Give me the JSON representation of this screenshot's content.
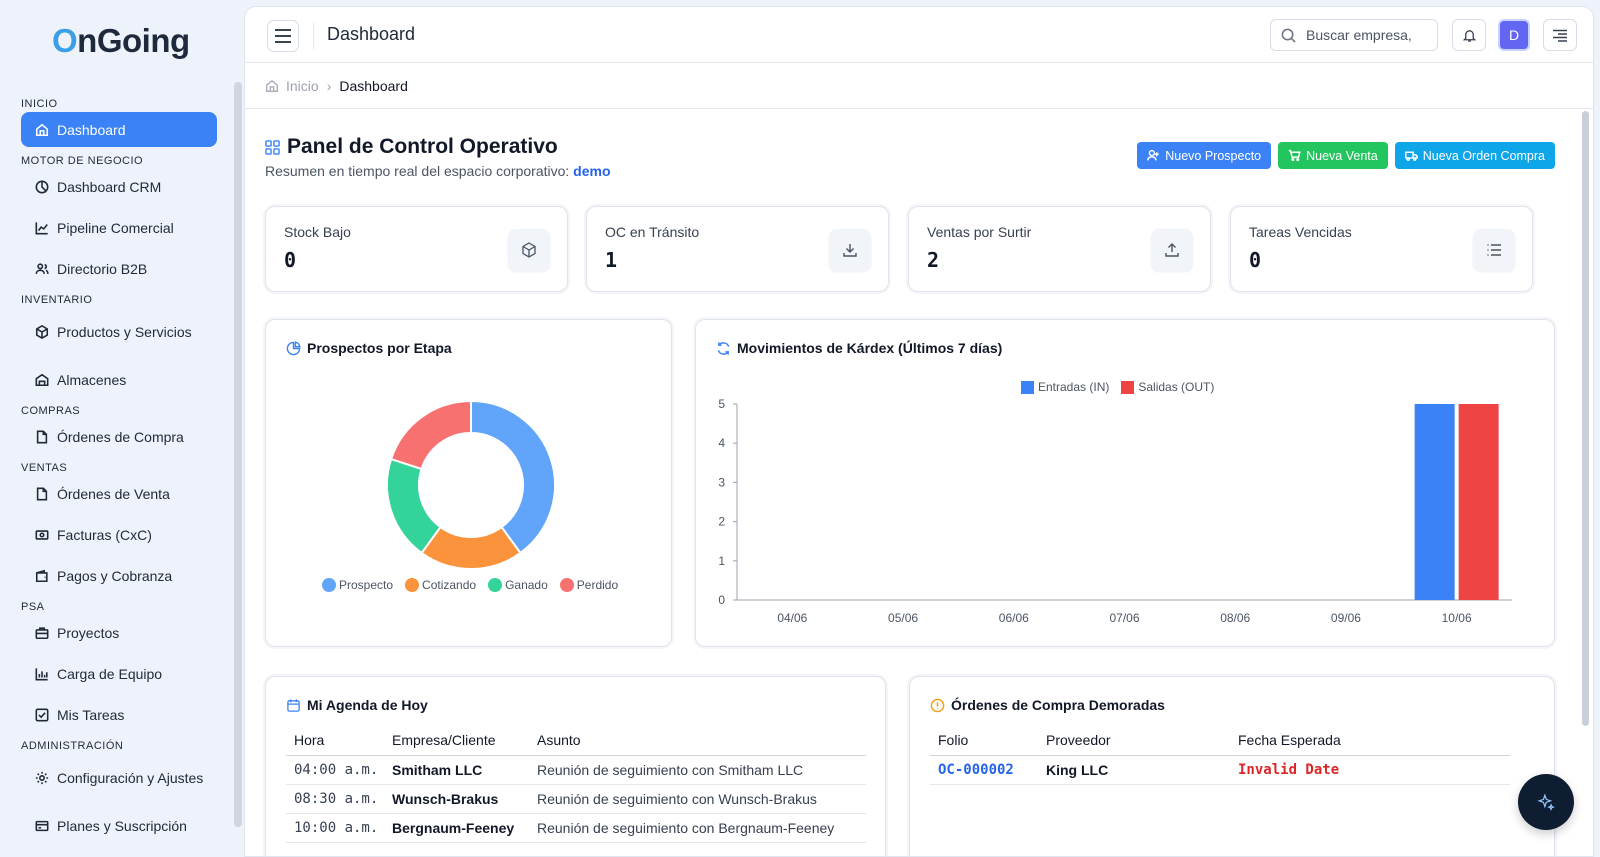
{
  "brand": {
    "logo_first": "O",
    "logo_rest": "nGoing"
  },
  "sidebar": {
    "sections": [
      {
        "title": "INICIO",
        "items": [
          {
            "label": "Dashboard",
            "icon": "home-icon",
            "active": true
          }
        ]
      },
      {
        "title": "MOTOR DE NEGOCIO",
        "items": [
          {
            "label": "Dashboard CRM",
            "icon": "pie-icon"
          },
          {
            "label": "Pipeline Comercial",
            "icon": "trend-icon"
          },
          {
            "label": "Directorio B2B",
            "icon": "users-icon"
          }
        ]
      },
      {
        "title": "INVENTARIO",
        "items": [
          {
            "label": "Productos y Servicios",
            "icon": "box-icon"
          },
          {
            "label": "Almacenes",
            "icon": "warehouse-icon"
          }
        ]
      },
      {
        "title": "COMPRAS",
        "items": [
          {
            "label": "Órdenes de Compra",
            "icon": "file-icon"
          }
        ]
      },
      {
        "title": "VENTAS",
        "items": [
          {
            "label": "Órdenes de Venta",
            "icon": "file-icon"
          },
          {
            "label": "Facturas (CxC)",
            "icon": "money-icon"
          },
          {
            "label": "Pagos y Cobranza",
            "icon": "wallet-icon"
          }
        ]
      },
      {
        "title": "PSA",
        "items": [
          {
            "label": "Proyectos",
            "icon": "briefcase-icon"
          },
          {
            "label": "Carga de Equipo",
            "icon": "bars-icon"
          },
          {
            "label": "Mis Tareas",
            "icon": "check-icon"
          }
        ]
      },
      {
        "title": "ADMINISTRACIÓN",
        "items": [
          {
            "label": "Configuración y Ajustes",
            "icon": "gear-icon"
          },
          {
            "label": "Planes y Suscripción",
            "icon": "card-icon"
          }
        ]
      }
    ]
  },
  "topbar": {
    "title": "Dashboard",
    "search_placeholder": "Buscar empresa,",
    "avatar_letter": "D"
  },
  "breadcrumb": {
    "home": "Inicio",
    "current": "Dashboard"
  },
  "page": {
    "title": "Panel de Control Operativo",
    "subtitle": "Resumen en tiempo real del espacio corporativo:",
    "workspace": "demo",
    "actions": [
      {
        "label": "Nuevo Prospecto",
        "color": "#3b82f6"
      },
      {
        "label": "Nueva Venta",
        "color": "#22c55e"
      },
      {
        "label": "Nueva Orden Compra",
        "color": "#0ea5e9"
      }
    ]
  },
  "stats": [
    {
      "label": "Stock Bajo",
      "value": "0",
      "icon": "box-icon"
    },
    {
      "label": "OC en Tránsito",
      "value": "1",
      "icon": "download-icon"
    },
    {
      "label": "Ventas por Surtir",
      "value": "2",
      "icon": "upload-icon"
    },
    {
      "label": "Tareas Vencidas",
      "value": "0",
      "icon": "list-icon"
    }
  ],
  "prospects_card": {
    "title": "Prospectos por Etapa"
  },
  "kardex_card": {
    "title": "Movimientos de Kárdex (Últimos 7 días)"
  },
  "chart_data": [
    {
      "type": "pie",
      "title": "Prospectos por Etapa",
      "categories": [
        "Prospecto",
        "Cotizando",
        "Ganado",
        "Perdido"
      ],
      "values": [
        40,
        20,
        20,
        20
      ],
      "colors": [
        "#60a5fa",
        "#fb923c",
        "#34d399",
        "#f87171"
      ],
      "donut": true,
      "legend": "bottom"
    },
    {
      "type": "bar",
      "title": "Movimientos de Kárdex (Últimos 7 días)",
      "categories": [
        "04/06",
        "05/06",
        "06/06",
        "07/06",
        "08/06",
        "09/06",
        "10/06"
      ],
      "series": [
        {
          "name": "Entradas (IN)",
          "color": "#3b82f6",
          "values": [
            0,
            0,
            0,
            0,
            0,
            0,
            5
          ]
        },
        {
          "name": "Salidas (OUT)",
          "color": "#ef4444",
          "values": [
            0,
            0,
            0,
            0,
            0,
            0,
            5
          ]
        }
      ],
      "ylim": [
        0,
        5
      ],
      "yticks": [
        "0",
        "1",
        "2",
        "3",
        "4",
        "5"
      ],
      "grid": false,
      "legend": "top"
    }
  ],
  "agenda": {
    "title": "Mi Agenda de Hoy",
    "columns": [
      "Hora",
      "Empresa/Cliente",
      "Asunto"
    ],
    "rows": [
      {
        "time": "04:00 a.m.",
        "company": "Smitham LLC",
        "subject": "Reunión de seguimiento con Smitham LLC"
      },
      {
        "time": "08:30 a.m.",
        "company": "Wunsch-Brakus",
        "subject": "Reunión de seguimiento con Wunsch-Brakus"
      },
      {
        "time": "10:00 a.m.",
        "company": "Bergnaum-Feeney",
        "subject": "Reunión de seguimiento con Bergnaum-Feeney"
      }
    ]
  },
  "delayed": {
    "title": "Órdenes de Compra Demoradas",
    "columns": [
      "Folio",
      "Proveedor",
      "Fecha Esperada"
    ],
    "rows": [
      {
        "folio": "OC-000002",
        "supplier": "King LLC",
        "date": "Invalid Date"
      }
    ]
  }
}
